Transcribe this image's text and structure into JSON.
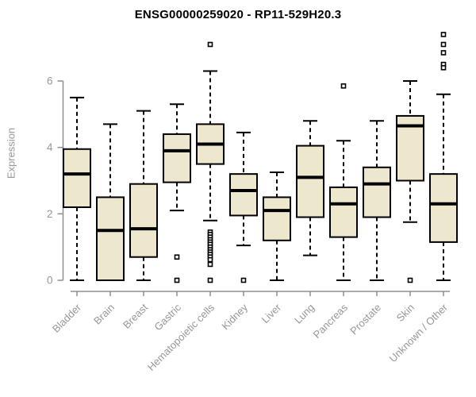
{
  "chart_data": {
    "type": "boxplot",
    "title": "ENSG00000259020 - RP11-529H20.3",
    "ylabel": "Expression",
    "xlabel": "",
    "ylim": [
      0,
      7.6
    ],
    "yticks": [
      0,
      2,
      4,
      6
    ],
    "grid": false,
    "legend": "none",
    "colors": {
      "box_fill": "#ece7cd",
      "box_stroke": "#000000",
      "median": "#000000",
      "whisker": "#000000",
      "outlier_stroke": "#000000",
      "outlier_fill": "#ffffff",
      "axis": "#8f8f8f",
      "tick_label": "#979797",
      "title": "#000000",
      "background": "#ffffff"
    },
    "categories": [
      "Bladder",
      "Brain",
      "Breast",
      "Gastric",
      "Hematopoietic cells",
      "Kidney",
      "Liver",
      "Lung",
      "Pancreas",
      "Prostate",
      "Skin",
      "Unknown / Other"
    ],
    "series": [
      {
        "name": "Bladder",
        "low": 0,
        "q1": 2.2,
        "median": 3.2,
        "q3": 3.95,
        "high": 5.5,
        "outliers": []
      },
      {
        "name": "Brain",
        "low": 0,
        "q1": 0,
        "median": 1.5,
        "q3": 2.5,
        "high": 4.7,
        "outliers": []
      },
      {
        "name": "Breast",
        "low": 0,
        "q1": 0.7,
        "median": 1.55,
        "q3": 2.9,
        "high": 5.1,
        "outliers": []
      },
      {
        "name": "Gastric",
        "low": 2.1,
        "q1": 2.95,
        "median": 3.9,
        "q3": 4.4,
        "high": 5.3,
        "outliers": [
          0.7,
          0
        ]
      },
      {
        "name": "Hematopoietic cells",
        "low": 1.8,
        "q1": 3.5,
        "median": 4.1,
        "q3": 4.7,
        "high": 6.3,
        "outliers": [
          7.1,
          1.45,
          1.38,
          1.3,
          1.22,
          1.15,
          1.08,
          1.0,
          0.92,
          0.85,
          0.78,
          0.7,
          0.62,
          0.48,
          0
        ]
      },
      {
        "name": "Kidney",
        "low": 1.05,
        "q1": 1.95,
        "median": 2.7,
        "q3": 3.2,
        "high": 4.45,
        "outliers": [
          0
        ]
      },
      {
        "name": "Liver",
        "low": 0,
        "q1": 1.2,
        "median": 2.1,
        "q3": 2.5,
        "high": 3.25,
        "outliers": []
      },
      {
        "name": "Lung",
        "low": 0.75,
        "q1": 1.9,
        "median": 3.1,
        "q3": 4.05,
        "high": 4.8,
        "outliers": []
      },
      {
        "name": "Pancreas",
        "low": 0,
        "q1": 1.3,
        "median": 2.3,
        "q3": 2.8,
        "high": 4.2,
        "outliers": [
          5.85
        ]
      },
      {
        "name": "Prostate",
        "low": 0,
        "q1": 1.9,
        "median": 2.9,
        "q3": 3.4,
        "high": 4.8,
        "outliers": []
      },
      {
        "name": "Skin",
        "low": 1.75,
        "q1": 3.0,
        "median": 4.65,
        "q3": 4.95,
        "high": 6.0,
        "outliers": [
          0
        ]
      },
      {
        "name": "Unknown / Other",
        "low": 0,
        "q1": 1.15,
        "median": 2.3,
        "q3": 3.2,
        "high": 5.6,
        "outliers": [
          7.4,
          7.1,
          6.85,
          6.5,
          6.4
        ]
      }
    ]
  }
}
